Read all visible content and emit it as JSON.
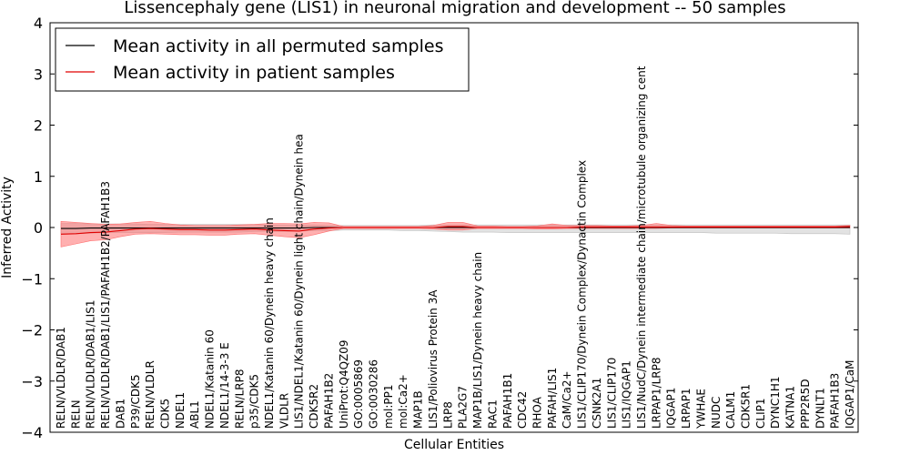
{
  "chart_data": {
    "type": "line",
    "title": "Lissencephaly gene (LIS1) in neuronal migration and development -- 50 samples",
    "xlabel": "Cellular Entities",
    "ylabel": "Inferred Activity",
    "ylim": [
      -4,
      4
    ],
    "yticks": [
      -4,
      -3,
      -2,
      -1,
      0,
      1,
      2,
      3,
      4
    ],
    "ytick_labels": [
      "−4",
      "−3",
      "−2",
      "−1",
      "0",
      "1",
      "2",
      "3",
      "4"
    ],
    "legend_position": "top-left",
    "categories": [
      "RELN/VLDLR/DAB1",
      "RELN",
      "RELN/VLDLR/DAB1/LIS1",
      "RELN/VLDLR/DAB1/LIS1/PAFAH1B2/PAFAH1B3",
      "DAB1",
      "P39/CDK5",
      "RELN/VLDLR",
      "CDK5",
      "NDEL1",
      "ABL1",
      "NDEL1/Katanin 60",
      "NDEL1/14-3-3 E",
      "RELN/LRP8",
      "p35/CDK5",
      "NDEL1/Katanin 60/Dynein heavy chain",
      "VLDLR",
      "LIS1/NDEL1/Katanin 60/Dynein light chain/Dynein hea",
      "CDK5R2",
      "PAFAH1B2",
      "UniProt:Q4QZ09",
      "GO:0005869",
      "GO:0030286",
      "mol:PP1",
      "mol:Ca2+",
      "MAP1B",
      "LIS1/Poliovirus Protein 3A",
      "LRP8",
      "PLA2G7",
      "MAP1B/LIS1/Dynein heavy chain",
      "RAC1",
      "PAFAH1B1",
      "CDC42",
      "RHOA",
      "PAFAH/LIS1",
      "CaM/Ca2+",
      "LIS1/CLIP170/Dynein Complex/Dynactin Complex",
      "CSNK2A1",
      "LIS1/CLIP170",
      "LIS1/IQGAP1",
      "LIS1/NudC/Dynein intermediate chain/microtubule organizing cent",
      "LRPAP1/LRP8",
      "IQGAP1",
      "LRPAP1",
      "YWHAE",
      "NUDC",
      "CALM1",
      "CDK5R1",
      "CLIP1",
      "DYNC1H1",
      "KATNA1",
      "PPP2R5D",
      "DYNLT1",
      "PAFAH1B3",
      "IQGAP1/CaM"
    ],
    "series": [
      {
        "name": "Mean activity in all permuted samples",
        "color": "#000000",
        "band_color": "#bfbfbf",
        "values": [
          -0.02,
          -0.02,
          -0.01,
          -0.01,
          -0.01,
          -0.01,
          -0.01,
          -0.01,
          -0.01,
          -0.01,
          -0.01,
          -0.01,
          -0.01,
          -0.01,
          -0.01,
          -0.01,
          -0.01,
          0.0,
          0.0,
          0.0,
          0.0,
          0.0,
          0.0,
          0.0,
          0.0,
          0.0,
          0.0,
          0.0,
          0.0,
          0.0,
          0.0,
          0.0,
          0.0,
          0.0,
          0.0,
          0.0,
          0.0,
          0.0,
          0.0,
          0.0,
          0.0,
          0.0,
          0.0,
          0.0,
          0.0,
          0.0,
          0.0,
          0.0,
          0.0,
          0.0,
          0.0,
          0.0,
          0.0,
          0.0
        ],
        "lower": [
          -0.12,
          -0.12,
          -0.11,
          -0.1,
          -0.1,
          -0.1,
          -0.1,
          -0.1,
          -0.09,
          -0.09,
          -0.09,
          -0.09,
          -0.09,
          -0.08,
          -0.08,
          -0.08,
          -0.07,
          -0.06,
          -0.06,
          -0.05,
          -0.05,
          -0.05,
          -0.05,
          -0.06,
          -0.06,
          -0.07,
          -0.08,
          -0.09,
          -0.09,
          -0.09,
          -0.1,
          -0.1,
          -0.1,
          -0.1,
          -0.1,
          -0.1,
          -0.1,
          -0.1,
          -0.1,
          -0.1,
          -0.1,
          -0.1,
          -0.1,
          -0.1,
          -0.11,
          -0.11,
          -0.11,
          -0.11,
          -0.11,
          -0.12,
          -0.12,
          -0.12,
          -0.12,
          -0.13
        ],
        "upper": [
          0.08,
          0.08,
          0.07,
          0.07,
          0.07,
          0.07,
          0.06,
          0.06,
          0.06,
          0.06,
          0.06,
          0.06,
          0.06,
          0.06,
          0.05,
          0.05,
          0.05,
          0.05,
          0.04,
          0.04,
          0.04,
          0.04,
          0.04,
          0.04,
          0.04,
          0.05,
          0.05,
          0.05,
          0.05,
          0.05,
          0.05,
          0.05,
          0.05,
          0.05,
          0.05,
          0.05,
          0.05,
          0.05,
          0.05,
          0.05,
          0.05,
          0.05,
          0.05,
          0.05,
          0.05,
          0.05,
          0.05,
          0.05,
          0.05,
          0.05,
          0.05,
          0.05,
          0.05,
          0.05
        ]
      },
      {
        "name": "Mean activity in patient samples",
        "color": "#e00000",
        "band_color": "#ff6f6f",
        "values": [
          -0.13,
          -0.12,
          -0.1,
          -0.09,
          -0.06,
          -0.03,
          -0.02,
          -0.03,
          -0.04,
          -0.04,
          -0.05,
          -0.05,
          -0.04,
          -0.03,
          -0.05,
          -0.06,
          -0.07,
          -0.03,
          -0.01,
          0.0,
          0.0,
          0.0,
          0.0,
          0.0,
          0.0,
          0.0,
          0.02,
          0.02,
          0.0,
          0.0,
          0.0,
          0.0,
          0.0,
          0.0,
          0.0,
          0.01,
          0.01,
          0.01,
          0.01,
          0.01,
          0.01,
          0.01,
          0.01,
          0.01,
          0.01,
          0.01,
          0.01,
          0.01,
          0.01,
          0.01,
          0.01,
          0.01,
          0.01,
          0.02
        ],
        "lower": [
          -0.38,
          -0.32,
          -0.26,
          -0.24,
          -0.18,
          -0.13,
          -0.12,
          -0.13,
          -0.14,
          -0.14,
          -0.15,
          -0.15,
          -0.13,
          -0.12,
          -0.15,
          -0.18,
          -0.2,
          -0.14,
          -0.07,
          -0.02,
          -0.02,
          -0.02,
          -0.02,
          -0.02,
          -0.02,
          -0.03,
          -0.05,
          -0.05,
          -0.02,
          -0.02,
          -0.02,
          -0.02,
          -0.03,
          -0.03,
          -0.02,
          -0.02,
          -0.02,
          -0.02,
          -0.02,
          -0.02,
          -0.02,
          -0.01,
          -0.01,
          -0.01,
          -0.01,
          -0.01,
          -0.01,
          -0.01,
          -0.01,
          -0.01,
          -0.01,
          -0.01,
          -0.01,
          -0.01
        ],
        "upper": [
          0.12,
          0.1,
          0.08,
          0.06,
          0.07,
          0.1,
          0.12,
          0.08,
          0.05,
          0.04,
          0.04,
          0.04,
          0.05,
          0.06,
          0.08,
          0.08,
          0.07,
          0.1,
          0.09,
          0.02,
          0.02,
          0.02,
          0.02,
          0.02,
          0.02,
          0.04,
          0.1,
          0.1,
          0.03,
          0.03,
          0.02,
          0.02,
          0.03,
          0.07,
          0.04,
          0.04,
          0.04,
          0.03,
          0.03,
          0.04,
          0.08,
          0.04,
          0.03,
          0.03,
          0.03,
          0.03,
          0.03,
          0.03,
          0.03,
          0.03,
          0.03,
          0.03,
          0.03,
          0.04
        ]
      }
    ]
  }
}
